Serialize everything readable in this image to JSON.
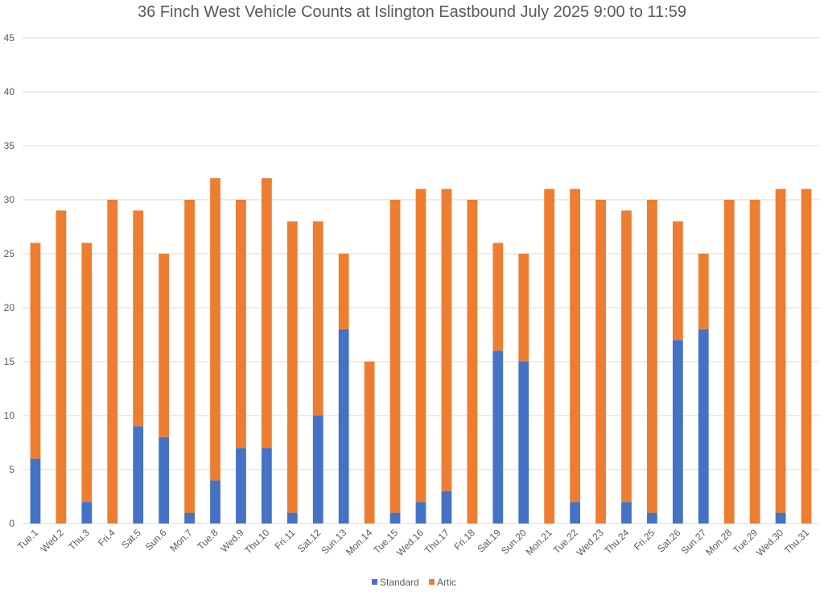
{
  "chart_data": {
    "type": "bar",
    "stacked": true,
    "title": "36 Finch West Vehicle Counts at Islington Eastbound July 2025  9:00 to 11:59",
    "xlabel": "",
    "ylabel": "",
    "ylim": [
      0,
      45
    ],
    "yticks": [
      0,
      5,
      10,
      15,
      20,
      25,
      30,
      35,
      40,
      45
    ],
    "grid": true,
    "legend_position": "bottom",
    "categories": [
      "Tue.1",
      "Wed.2",
      "Thu.3",
      "Fri.4",
      "Sat.5",
      "Sun.6",
      "Mon.7",
      "Tue.8",
      "Wed.9",
      "Thu.10",
      "Fri.11",
      "Sat.12",
      "Sun.13",
      "Mon.14",
      "Tue.15",
      "Wed.16",
      "Thu.17",
      "Fri.18",
      "Sat.19",
      "Sun.20",
      "Mon.21",
      "Tue.22",
      "Wed.23",
      "Thu.24",
      "Fri.25",
      "Sat.26",
      "Sun.27",
      "Mon.28",
      "Tue.29",
      "Wed.30",
      "Thu.31"
    ],
    "series": [
      {
        "name": "Standard",
        "color": "#4472c4",
        "values": [
          6,
          0,
          2,
          0,
          9,
          8,
          1,
          4,
          7,
          7,
          1,
          10,
          18,
          0,
          1,
          2,
          3,
          0,
          16,
          15,
          0,
          2,
          0,
          2,
          1,
          17,
          18,
          0,
          0,
          1,
          0
        ]
      },
      {
        "name": "Artic",
        "color": "#ed7d31",
        "values": [
          20,
          29,
          24,
          30,
          20,
          17,
          29,
          28,
          23,
          25,
          27,
          18,
          7,
          15,
          29,
          29,
          28,
          30,
          10,
          10,
          31,
          29,
          30,
          27,
          29,
          11,
          7,
          30,
          30,
          30,
          31
        ]
      }
    ]
  }
}
